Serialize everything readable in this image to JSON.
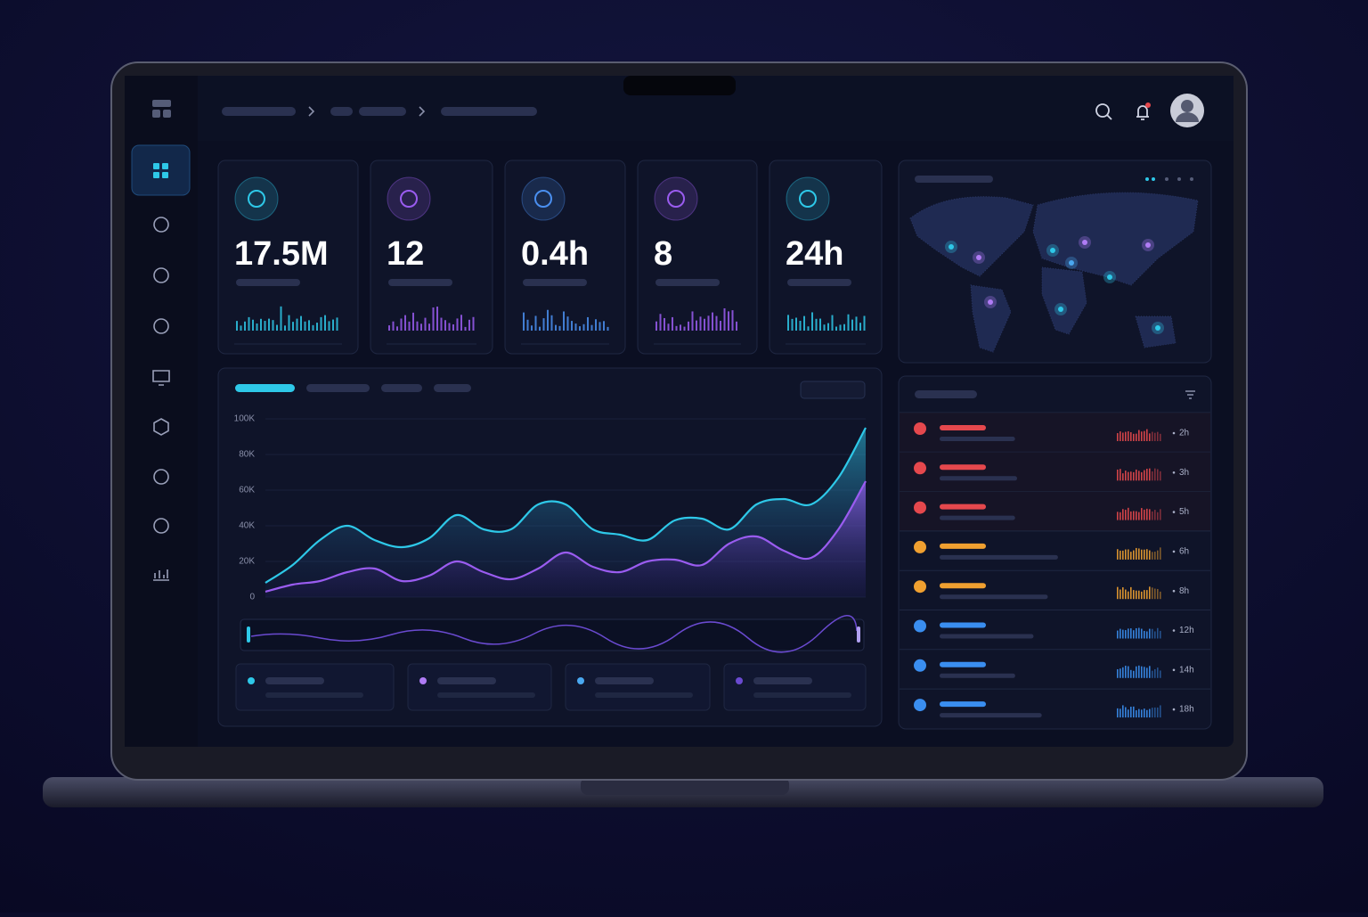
{
  "kpis": [
    {
      "value": "17.5M",
      "color": "#2ec8e8"
    },
    {
      "value": "12",
      "color": "#9a5cf0"
    },
    {
      "value": "0.4h",
      "color": "#4a8ff0"
    },
    {
      "value": "8",
      "color": "#9a5cf0"
    },
    {
      "value": "24h",
      "color": "#2ec8e8"
    }
  ],
  "main_chart": {
    "type": "area",
    "ylim": [
      0,
      100000
    ],
    "yticks": [
      0,
      {
        "value": 20000,
        "label": "20K"
      },
      {
        "value": 40000,
        "label": "40K"
      },
      {
        "value": 60000,
        "label": "60K"
      },
      {
        "value": 80000,
        "label": "80K"
      },
      {
        "value": 100000,
        "label": "100K"
      }
    ],
    "series": [
      {
        "color": "#2ec8e8",
        "values": [
          8000,
          18000,
          32000,
          40000,
          32000,
          28000,
          33000,
          46000,
          38000,
          38000,
          52000,
          52000,
          38000,
          35000,
          32000,
          43000,
          44000,
          38000,
          52000,
          55000,
          52000,
          67000,
          95000
        ]
      },
      {
        "color": "#9a5cf0",
        "values": [
          3000,
          7000,
          9000,
          14000,
          16000,
          9000,
          12000,
          20000,
          14000,
          10000,
          16000,
          25000,
          17000,
          14000,
          20000,
          21000,
          18000,
          30000,
          34000,
          26000,
          22000,
          38000,
          65000
        ]
      }
    ]
  },
  "alerts": [
    {
      "time": "2h",
      "color": "#e5484d"
    },
    {
      "time": "3h",
      "color": "#e5484d"
    },
    {
      "time": "5h",
      "color": "#e5484d"
    },
    {
      "time": "6h",
      "color": "#f0a030"
    },
    {
      "time": "8h",
      "color": "#f0a030"
    },
    {
      "time": "12h",
      "color": "#3a8ef0"
    },
    {
      "time": "14h",
      "color": "#3a8ef0"
    },
    {
      "time": "18h",
      "color": "#3a8ef0"
    }
  ]
}
